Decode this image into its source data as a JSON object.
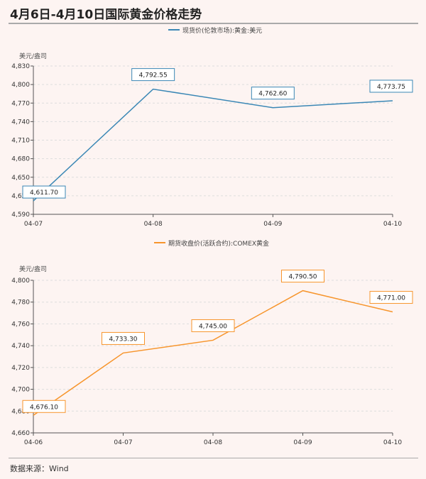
{
  "title": "4月6日-4月10日国际黄金价格走势",
  "source": "数据来源：Wind",
  "chart_data": [
    {
      "type": "line",
      "legend": "现货价(伦敦市场):黄金:美元",
      "unit": "美元/盎司",
      "color": "#3a87b5",
      "categories": [
        "04-07",
        "04-08",
        "04-09",
        "04-10"
      ],
      "values": [
        4611.7,
        4792.55,
        4762.6,
        4773.75
      ],
      "labels": [
        "4,611.70",
        "4,792.55",
        "4,762.60",
        "4,773.75"
      ],
      "ylim": [
        4590,
        4830
      ],
      "yticks": [
        4590,
        4620,
        4650,
        4680,
        4710,
        4740,
        4770,
        4800,
        4830
      ],
      "ytick_labels": [
        "4,590",
        "4,620",
        "4,650",
        "4,680",
        "4,710",
        "4,740",
        "4,770",
        "4,800",
        "4,830"
      ],
      "legend_position": "top",
      "grid": true
    },
    {
      "type": "line",
      "legend": "期货收盘价(活跃合约):COMEX黄金",
      "unit": "美元/盎司",
      "color": "#f7952c",
      "categories": [
        "04-06",
        "04-07",
        "04-08",
        "04-09",
        "04-10"
      ],
      "values": [
        4676.1,
        4733.3,
        4745.0,
        4790.5,
        4771.0
      ],
      "labels": [
        "4,676.10",
        "4,733.30",
        "4,745.00",
        "4,790.50",
        "4,771.00"
      ],
      "ylim": [
        4660,
        4800
      ],
      "yticks": [
        4660,
        4680,
        4700,
        4720,
        4740,
        4760,
        4780,
        4800
      ],
      "ytick_labels": [
        "4,660",
        "4,680",
        "4,700",
        "4,720",
        "4,740",
        "4,760",
        "4,780",
        "4,800"
      ],
      "legend_position": "top",
      "grid": true
    }
  ]
}
